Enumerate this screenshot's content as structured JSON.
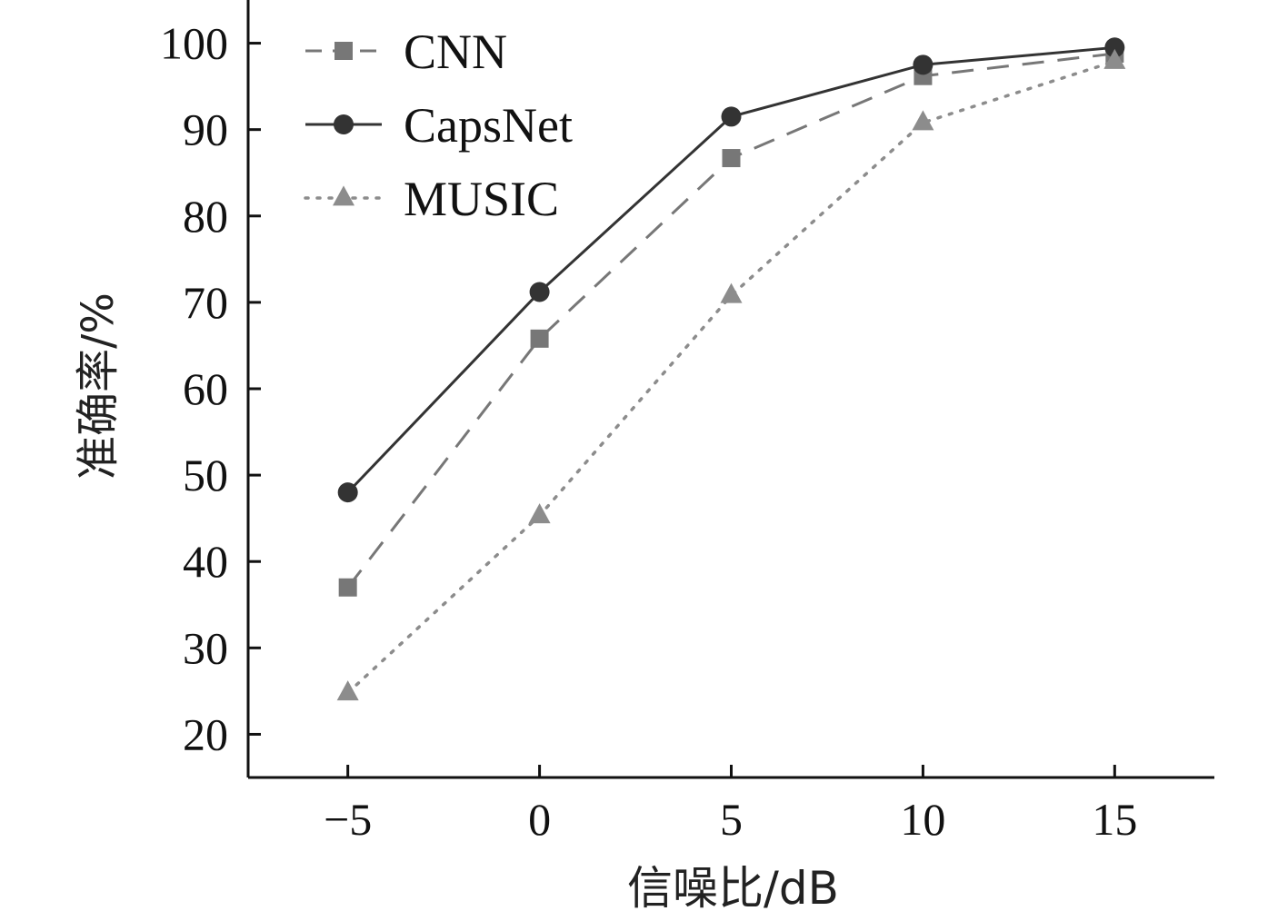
{
  "chart_data": {
    "type": "line",
    "xlabel": "信噪比/dB",
    "ylabel": "准确率/%",
    "x": [
      -5,
      0,
      5,
      10,
      15
    ],
    "x_tick_labels": [
      "−5",
      "0",
      "5",
      "10",
      "15"
    ],
    "xlim": [
      -7.6,
      17.6
    ],
    "ylim": [
      15,
      105
    ],
    "y_ticks": [
      20,
      30,
      40,
      50,
      60,
      70,
      80,
      90,
      100
    ],
    "y_tick_labels": [
      "20",
      "30",
      "40",
      "50",
      "60",
      "70",
      "80",
      "90",
      "100"
    ],
    "grid": false,
    "legend_position": "top-left",
    "series": [
      {
        "name": "CNN",
        "values": [
          37,
          65.8,
          86.7,
          96.2,
          98.8
        ],
        "marker": "square",
        "line": "dashed",
        "color": "#777777"
      },
      {
        "name": "CapsNet",
        "values": [
          48,
          71.2,
          91.5,
          97.5,
          99.5
        ],
        "marker": "circle",
        "line": "solid",
        "color": "#333333"
      },
      {
        "name": "MUSIC",
        "values": [
          24.8,
          45.3,
          70.8,
          90.8,
          97.9
        ],
        "marker": "triangle",
        "line": "dotted",
        "color": "#8c8c8c"
      }
    ]
  }
}
